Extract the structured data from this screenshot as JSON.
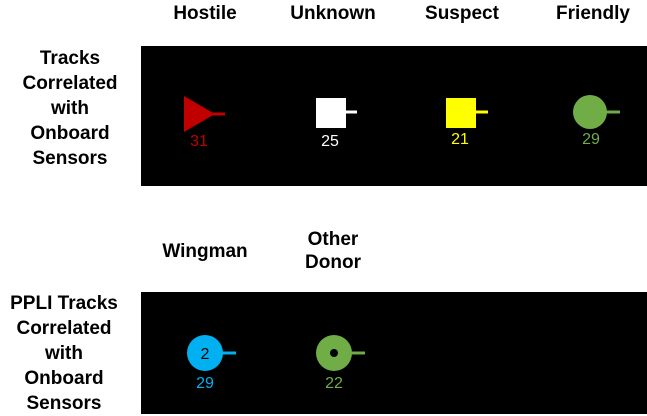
{
  "section1": {
    "row_label": [
      "Tracks",
      "Correlated",
      "with",
      "Onboard",
      "Sensors"
    ],
    "columns": [
      {
        "header": [
          "Hostile"
        ],
        "symbol": "triangle-icon",
        "number": "31",
        "color": "#c00000"
      },
      {
        "header": [
          "Unknown"
        ],
        "symbol": "square-icon",
        "number": "25",
        "color": "#ffffff"
      },
      {
        "header": [
          "Suspect"
        ],
        "symbol": "square-icon",
        "number": "21",
        "color": "#ffff00"
      },
      {
        "header": [
          "Friendly"
        ],
        "symbol": "circle-icon",
        "number": "29",
        "color": "#70ad47"
      }
    ]
  },
  "section2": {
    "row_label": [
      "PPLI Tracks",
      "Correlated",
      "with",
      "Onboard",
      "Sensors"
    ],
    "columns": [
      {
        "header": [
          "Wingman"
        ],
        "symbol": "circle-icon",
        "inner_label": "2",
        "number": "29",
        "color": "#00b0f0"
      },
      {
        "header": [
          "Other",
          "Donor"
        ],
        "symbol": "circle-dot-icon",
        "number": "22",
        "color": "#70ad47"
      }
    ]
  }
}
